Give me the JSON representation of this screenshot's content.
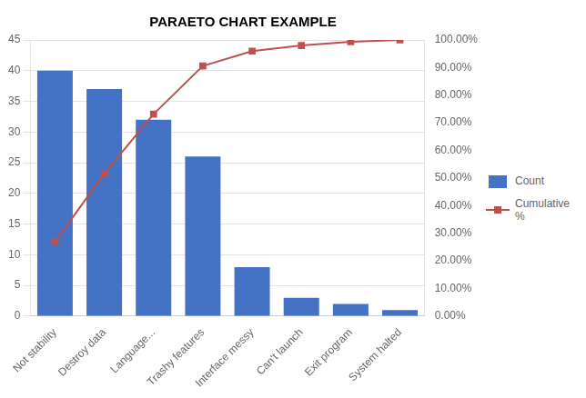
{
  "chart_data": {
    "type": "bar",
    "title": "PARAETO CHART EXAMPLE",
    "categories": [
      "Not stability",
      "Destroy data",
      "Language...",
      "Trashy features",
      "Interface messy",
      "Can't launch",
      "Exit program",
      "System halted"
    ],
    "series": [
      {
        "name": "Count",
        "type": "bar",
        "color": "#4472C4",
        "values": [
          40,
          37,
          32,
          26,
          8,
          3,
          2,
          1
        ]
      },
      {
        "name": "Cumulative\n%",
        "type": "line",
        "color": "#C0504D",
        "marker": "square",
        "axis": "y2",
        "values": [
          26.85,
          51.68,
          73.15,
          90.6,
          95.97,
          97.99,
          99.33,
          100.0
        ]
      }
    ],
    "ylim": [
      0,
      45
    ],
    "yticks": [
      0,
      5,
      10,
      15,
      20,
      25,
      30,
      35,
      40,
      45
    ],
    "y2lim": [
      0,
      100
    ],
    "y2ticks": [
      {
        "value": 0,
        "label": "0.00%"
      },
      {
        "value": 10,
        "label": "10.00%"
      },
      {
        "value": 20,
        "label": "20.00%"
      },
      {
        "value": 30,
        "label": "30.00%"
      },
      {
        "value": 40,
        "label": "40.00%"
      },
      {
        "value": 50,
        "label": "50.00%"
      },
      {
        "value": 60,
        "label": "60.00%"
      },
      {
        "value": 70,
        "label": "70.00%"
      },
      {
        "value": 80,
        "label": "80.00%"
      },
      {
        "value": 90,
        "label": "90.00%"
      },
      {
        "value": 100,
        "label": "100.00%"
      }
    ],
    "grid": true,
    "legend": "right"
  }
}
